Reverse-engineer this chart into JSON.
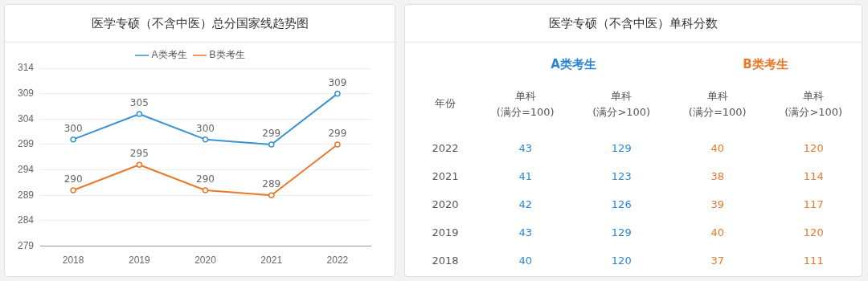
{
  "chart_data": [
    {
      "type": "line",
      "title": "医学专硕（不含中医）总分国家线趋势图",
      "categories": [
        "2018",
        "2019",
        "2020",
        "2021",
        "2022"
      ],
      "series": [
        {
          "name": "A类考生",
          "color": "#3a93d1",
          "values": [
            300,
            305,
            300,
            299,
            309
          ]
        },
        {
          "name": "B类考生",
          "color": "#e8782a",
          "values": [
            290,
            295,
            290,
            289,
            299
          ]
        }
      ],
      "ylim": [
        279,
        314
      ],
      "yticks": [
        279,
        284,
        289,
        294,
        299,
        304,
        309,
        314
      ],
      "grid": "y",
      "legend": "top",
      "marker": "circle",
      "line_style": "solid",
      "data_labels": true
    },
    {
      "type": "heatmap",
      "title": "医学专硕（不含中医）单科分数",
      "ylabel": "年份",
      "categories": [
        "单科(满分=100)",
        "单科(满分>100)",
        "单科(满分=100)",
        "单科(满分>100)"
      ],
      "y_categories": [
        "2022",
        "2021",
        "2020",
        "2019",
        "2018"
      ],
      "cells": [
        [
          43,
          129,
          40,
          120
        ],
        [
          41,
          123,
          38,
          114
        ],
        [
          42,
          126,
          39,
          117
        ],
        [
          43,
          129,
          40,
          120
        ],
        [
          40,
          120,
          37,
          111
        ]
      ],
      "colors": [
        "#2a86d4",
        "#2a86d4",
        "#e8782a",
        "#e8782a"
      ],
      "annotations": [
        "A类考生",
        "B类考生"
      ],
      "data_labels": true
    }
  ]
}
